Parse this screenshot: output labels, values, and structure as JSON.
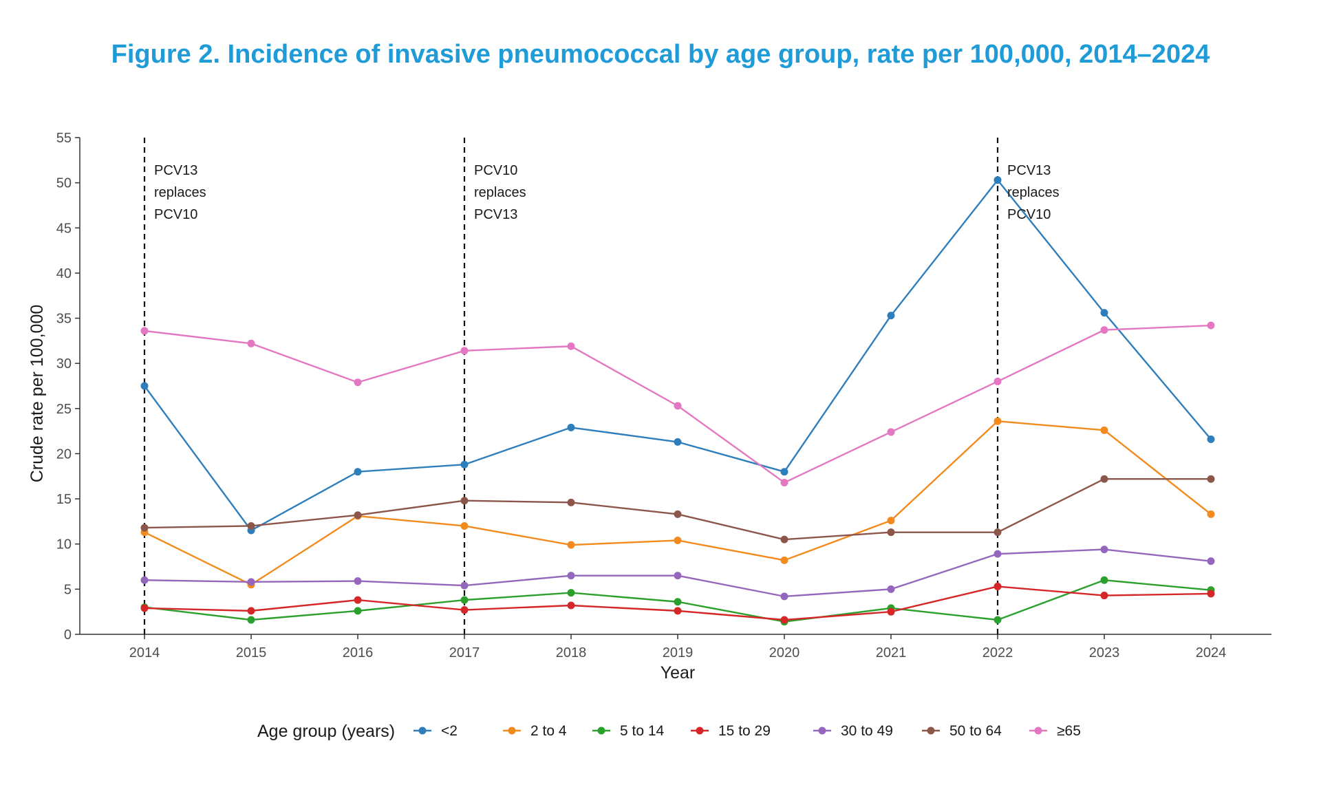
{
  "chart_data": {
    "type": "line",
    "title": "Figure 2. Incidence of invasive pneumococcal by age group, rate per 100,000, 2014–2024",
    "xlabel": "Year",
    "ylabel": "Crude rate per 100,000",
    "x": [
      2014,
      2015,
      2016,
      2017,
      2018,
      2019,
      2020,
      2021,
      2022,
      2023,
      2024
    ],
    "ylim": [
      0,
      55
    ],
    "yticks": [
      0,
      5,
      10,
      15,
      20,
      25,
      30,
      35,
      40,
      45,
      50,
      55
    ],
    "grid": false,
    "legend_title": "Age group (years)",
    "legend_position": "bottom",
    "series": [
      {
        "name": "<2",
        "color": "#2f7ebc",
        "values": [
          27.5,
          11.5,
          18.0,
          18.8,
          22.9,
          21.3,
          18.0,
          35.3,
          50.3,
          35.6,
          21.6
        ]
      },
      {
        "name": "2 to 4",
        "color": "#f28a1e",
        "values": [
          11.3,
          5.5,
          13.1,
          12.0,
          9.9,
          10.4,
          8.2,
          12.6,
          23.6,
          22.6,
          13.3
        ]
      },
      {
        "name": "5 to 14",
        "color": "#2ca02c",
        "values": [
          3.0,
          1.6,
          2.6,
          3.8,
          4.6,
          3.6,
          1.4,
          2.9,
          1.6,
          6.0,
          4.9
        ]
      },
      {
        "name": "15 to 29",
        "color": "#d62728",
        "values": [
          2.9,
          2.6,
          3.8,
          2.7,
          3.2,
          2.6,
          1.6,
          2.5,
          5.3,
          4.3,
          4.5
        ]
      },
      {
        "name": "30 to 49",
        "color": "#9467bd",
        "values": [
          6.0,
          5.8,
          5.9,
          5.4,
          6.5,
          6.5,
          4.2,
          5.0,
          8.9,
          9.4,
          8.1
        ]
      },
      {
        "name": "50 to 64",
        "color": "#8c564b",
        "values": [
          11.8,
          12.0,
          13.2,
          14.8,
          14.6,
          13.3,
          10.5,
          11.3,
          11.3,
          17.2,
          17.2
        ]
      },
      {
        "name": "≥65",
        "color": "#e377c2",
        "values": [
          33.6,
          32.2,
          27.9,
          31.4,
          31.9,
          25.3,
          16.8,
          22.4,
          28.0,
          33.7,
          34.2
        ]
      }
    ],
    "annotations": [
      {
        "x": 2014,
        "lines": [
          "PCV13",
          "replaces",
          "PCV10"
        ]
      },
      {
        "x": 2017,
        "lines": [
          "PCV10",
          "replaces",
          "PCV13"
        ]
      },
      {
        "x": 2022,
        "lines": [
          "PCV13",
          "replaces",
          "PCV10"
        ]
      }
    ]
  }
}
